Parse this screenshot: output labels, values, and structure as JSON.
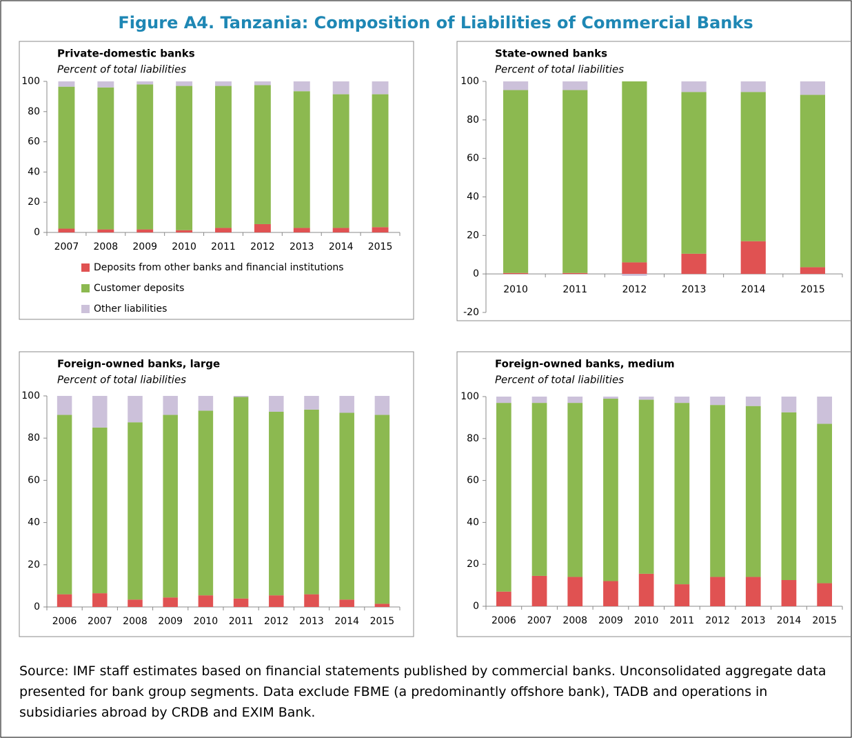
{
  "title": "Figure A4. Tanzania: Composition of Liabilities of Commercial Banks",
  "chart_data": [
    {
      "type": "stacked-bar",
      "title": "Private-domestic banks",
      "subtitle": "Percent of total liabilities",
      "categories": [
        "2007",
        "2008",
        "2009",
        "2010",
        "2011",
        "2012",
        "2013",
        "2014",
        "2015"
      ],
      "series": [
        {
          "name": "Deposits from other banks and financial institutions",
          "color": "#e05252",
          "values": [
            2.5,
            2,
            2,
            1.5,
            3,
            5.5,
            3,
            3,
            3.5
          ]
        },
        {
          "name": "Customer deposits",
          "color": "#8cb950",
          "values": [
            94,
            94,
            96,
            95.5,
            94,
            92,
            90.5,
            88.5,
            88
          ]
        },
        {
          "name": "Other liabilities",
          "color": "#ccc1da",
          "values": [
            3.5,
            4,
            2,
            3,
            3,
            2.5,
            6.5,
            8.5,
            8.5
          ]
        }
      ],
      "ylim": [
        0,
        100
      ],
      "yticks": [
        0,
        20,
        40,
        60,
        80,
        100
      ]
    },
    {
      "type": "stacked-bar",
      "title": "State-owned banks",
      "subtitle": "Percent of total liabilities",
      "categories": [
        "2010",
        "2011",
        "2012",
        "2013",
        "2014",
        "2015"
      ],
      "series": [
        {
          "color": "#e05252",
          "values": [
            0.5,
            0.5,
            6,
            10.5,
            17,
            3.5
          ]
        },
        {
          "color": "#8cb950",
          "values": [
            95,
            95,
            94,
            84,
            77.5,
            89.5
          ]
        },
        {
          "color": "#ccc1da",
          "values": [
            4.5,
            4.5,
            -1,
            5.5,
            5.5,
            7
          ]
        }
      ],
      "ylim": [
        -20,
        100
      ],
      "yticks": [
        -20,
        0,
        20,
        40,
        60,
        80,
        100
      ]
    },
    {
      "type": "stacked-bar",
      "title": "Foreign-owned banks, large",
      "subtitle": "Percent of total liabilities",
      "categories": [
        "2006",
        "2007",
        "2008",
        "2009",
        "2010",
        "2011",
        "2012",
        "2013",
        "2014",
        "2015"
      ],
      "series": [
        {
          "color": "#e05252",
          "values": [
            6,
            6.5,
            3.5,
            4.5,
            5.5,
            4,
            5.5,
            6,
            3.5,
            1.5
          ]
        },
        {
          "color": "#8cb950",
          "values": [
            85,
            78.5,
            84,
            86.5,
            87.5,
            95.5,
            87,
            87.5,
            88.5,
            89.5
          ]
        },
        {
          "color": "#ccc1da",
          "values": [
            9,
            15,
            12.5,
            9,
            7,
            0.5,
            7.5,
            6.5,
            8,
            9
          ]
        }
      ],
      "ylim": [
        0,
        100
      ],
      "yticks": [
        0,
        20,
        40,
        60,
        80,
        100
      ]
    },
    {
      "type": "stacked-bar",
      "title": "Foreign-owned banks, medium",
      "subtitle": "Percent of total liabilities",
      "categories": [
        "2006",
        "2007",
        "2008",
        "2009",
        "2010",
        "2011",
        "2012",
        "2013",
        "2014",
        "2015"
      ],
      "series": [
        {
          "color": "#e05252",
          "values": [
            7,
            14.5,
            14,
            12,
            15.5,
            10.5,
            14,
            14,
            12.5,
            11
          ]
        },
        {
          "color": "#8cb950",
          "values": [
            90,
            82.5,
            83,
            87,
            83,
            86.5,
            82,
            81.5,
            80,
            76
          ]
        },
        {
          "color": "#ccc1da",
          "values": [
            3,
            3,
            3,
            1,
            1.5,
            3,
            4,
            4.5,
            7.5,
            13
          ]
        }
      ],
      "ylim": [
        0,
        100
      ],
      "yticks": [
        0,
        20,
        40,
        60,
        80,
        100
      ]
    }
  ],
  "source": "Source: IMF staff estimates based on financial statements published by commercial banks. Unconsolidated aggregate data presented for bank group segments. Data exclude FBME (a predominantly offshore bank), TADB and operations in subsidiaries abroad by CRDB and EXIM Bank."
}
